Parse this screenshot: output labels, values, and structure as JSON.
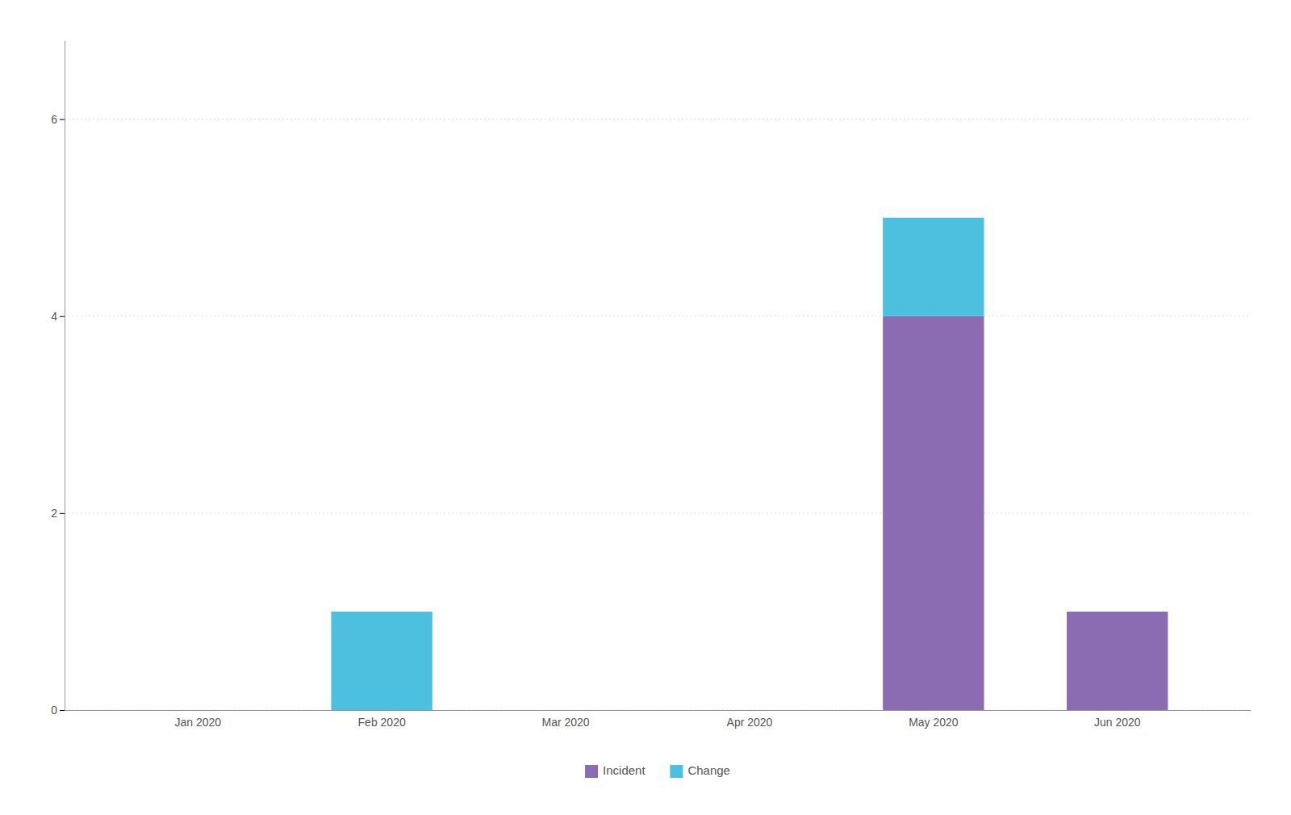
{
  "chart_data": {
    "type": "bar",
    "stacked": true,
    "categories": [
      "Jan 2020",
      "Feb 2020",
      "Mar 2020",
      "Apr 2020",
      "May 2020",
      "Jun 2020"
    ],
    "series": [
      {
        "name": "Incident",
        "color": "#8B6BB1",
        "values": [
          0,
          0,
          0,
          0,
          4,
          1
        ]
      },
      {
        "name": "Change",
        "color": "#4DBFDF",
        "values": [
          0,
          1,
          0,
          0,
          1,
          0
        ]
      }
    ],
    "ylim": [
      0,
      6.8
    ],
    "yticks": [
      0,
      2,
      4,
      6
    ],
    "grid": true,
    "legend": "bottom"
  }
}
